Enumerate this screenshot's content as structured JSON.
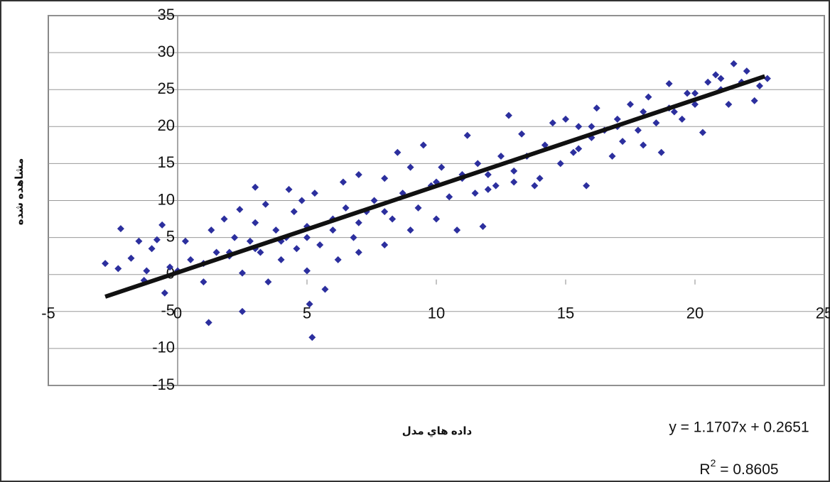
{
  "chart_data": {
    "type": "scatter",
    "x_label": "داده هاي مدل",
    "y_label": "مشاهده شده",
    "equation": "y = 1.1707x + 0.2651",
    "r2": {
      "base": "R",
      "sup": "2",
      "rest": " = 0.8605"
    },
    "xlim": [
      -5,
      25
    ],
    "xticks": [
      -5,
      0,
      5,
      10,
      15,
      20,
      25
    ],
    "ylim": [
      -15,
      35
    ],
    "yticks": [
      -15,
      -10,
      -5,
      0,
      5,
      10,
      15,
      20,
      25,
      30,
      35
    ],
    "grid": true,
    "series": [
      {
        "color": "#2c2f9e",
        "x": [
          -2.8,
          -2.3,
          -2.2,
          -1.8,
          -1.5,
          -1.3,
          -1.2,
          -1,
          -0.8,
          -0.6,
          -0.5,
          -0.3,
          0.3,
          0.5,
          1,
          1.2,
          1.3,
          1.5,
          1.8,
          2,
          2.2,
          2.4,
          2.5,
          2.5,
          2.8,
          3,
          3,
          3.2,
          3.4,
          3.5,
          3.8,
          4,
          4.2,
          4.3,
          4.5,
          4.6,
          4.8,
          5,
          5,
          5.1,
          5.2,
          5.3,
          5.5,
          5.7,
          6,
          6.2,
          6.4,
          6.5,
          6.8,
          7,
          7,
          7.3,
          7.6,
          8,
          8,
          8.3,
          8.5,
          8.7,
          9,
          9,
          9.3,
          9.5,
          9.8,
          10,
          10.2,
          10.5,
          10.8,
          11,
          11.2,
          11.5,
          11.6,
          11.8,
          12,
          12.3,
          12.5,
          12.8,
          13,
          13.3,
          13.5,
          13.8,
          14,
          14.2,
          14.5,
          14.8,
          15,
          15.3,
          15.5,
          15.8,
          16,
          16.2,
          16.5,
          16.8,
          17,
          17.2,
          17.5,
          17.8,
          18,
          18.2,
          18.5,
          18.7,
          19,
          19.2,
          19.5,
          19.7,
          20,
          20.3,
          20.5,
          20.8,
          21,
          21.3,
          21.5,
          21.8,
          22,
          22.3,
          22.5,
          22.8,
          15.5,
          16,
          17,
          18,
          19,
          20,
          21,
          12,
          13,
          11,
          10,
          8,
          7,
          6,
          5,
          4,
          3,
          2,
          1,
          0
        ],
        "values": [
          1.5,
          0.8,
          6.2,
          2.2,
          4.5,
          -0.8,
          0.5,
          3.5,
          4.7,
          6.7,
          -2.5,
          1,
          4.5,
          2,
          -1,
          -6.5,
          6,
          3,
          7.5,
          2.5,
          5,
          8.8,
          0.2,
          -5,
          4.5,
          11.8,
          7,
          3,
          9.5,
          -1,
          6,
          2,
          5,
          11.5,
          8.5,
          3.5,
          10,
          0.5,
          6.5,
          -4,
          -8.5,
          11,
          4,
          -2,
          7.5,
          2,
          12.5,
          9,
          5,
          13.5,
          3,
          8.5,
          10,
          13,
          4,
          7.5,
          16.5,
          11,
          6,
          14.5,
          9,
          17.5,
          12,
          7.5,
          14.5,
          10.5,
          6,
          13,
          18.8,
          11,
          15,
          6.5,
          13.5,
          12,
          16,
          21.5,
          14,
          19,
          16,
          12,
          13,
          17.5,
          20.5,
          15,
          21,
          16.5,
          20,
          12,
          18.5,
          22.5,
          19.5,
          16,
          21,
          18,
          23,
          19.5,
          17.5,
          24,
          20.5,
          16.5,
          25.8,
          22,
          21,
          24.5,
          23,
          19.2,
          26,
          27,
          25,
          23,
          28.5,
          26,
          27.5,
          23.5,
          25.5,
          26.5,
          17,
          20,
          20,
          22,
          22.5,
          24.5,
          26.5,
          11.5,
          12.5,
          13.5,
          12.5,
          8.5,
          7,
          6,
          5,
          4.5,
          3.5,
          3,
          1.5,
          0.5
        ]
      }
    ],
    "trendline": {
      "color": "#111111",
      "x": [
        -2.8,
        22.7
      ],
      "values": [
        -3.0,
        26.8
      ]
    }
  }
}
